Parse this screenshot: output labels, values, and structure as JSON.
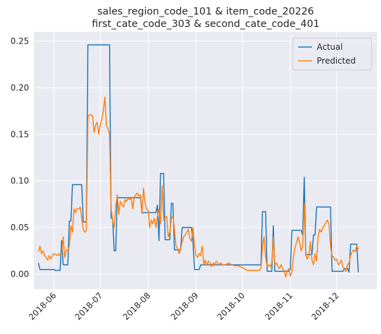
{
  "chart_data": {
    "type": "line",
    "title_line1": "sales_region_code_101 & item_code_20226",
    "title_line2": "first_cate_code_303 & second_cate_code_401",
    "title": "sales_region_code_101 & item_code_20226 first_cate_code_303 & second_cate_code_401",
    "xlabel": "",
    "ylabel": "",
    "x_axis": {
      "type": "date",
      "range": [
        "2018-05-19",
        "2018-12-27"
      ],
      "ticks": [
        "2018-06-01",
        "2018-07-01",
        "2018-08-01",
        "2018-09-01",
        "2018-10-01",
        "2018-11-01",
        "2018-12-01"
      ],
      "tick_labels": [
        "2018-06",
        "2018-07",
        "2018-08",
        "2018-09",
        "2018-10",
        "2018-11",
        "2018-12"
      ]
    },
    "y_axis": {
      "range": [
        -0.016,
        0.26
      ],
      "ticks": [
        0.0,
        0.05,
        0.1,
        0.15,
        0.2,
        0.25
      ],
      "tick_labels": [
        "0.00",
        "0.05",
        "0.10",
        "0.15",
        "0.20",
        "0.25"
      ]
    },
    "grid": true,
    "background": "#eaeaf2",
    "legend_position": "top-right",
    "series": [
      {
        "name": "Actual",
        "color": "#1f77b4",
        "points": [
          [
            "2018-05-22",
            0.012
          ],
          [
            "2018-05-23",
            0.005
          ],
          [
            "2018-06-01",
            0.005
          ],
          [
            "2018-06-02",
            0.004
          ],
          [
            "2018-06-05",
            0.004
          ],
          [
            "2018-06-06",
            0.036
          ],
          [
            "2018-06-07",
            0.01
          ],
          [
            "2018-06-10",
            0.01
          ],
          [
            "2018-06-11",
            0.057
          ],
          [
            "2018-06-12",
            0.057
          ],
          [
            "2018-06-13",
            0.096
          ],
          [
            "2018-06-19",
            0.096
          ],
          [
            "2018-06-20",
            0.056
          ],
          [
            "2018-06-22",
            0.056
          ],
          [
            "2018-06-23",
            0.246
          ],
          [
            "2018-07-07",
            0.246
          ],
          [
            "2018-07-08",
            0.06
          ],
          [
            "2018-07-09",
            0.06
          ],
          [
            "2018-07-10",
            0.025
          ],
          [
            "2018-07-11",
            0.025
          ],
          [
            "2018-07-12",
            0.082
          ],
          [
            "2018-07-27",
            0.082
          ],
          [
            "2018-07-28",
            0.066
          ],
          [
            "2018-08-06",
            0.066
          ],
          [
            "2018-08-07",
            0.074
          ],
          [
            "2018-08-08",
            0.036
          ],
          [
            "2018-08-09",
            0.108
          ],
          [
            "2018-08-11",
            0.108
          ],
          [
            "2018-08-12",
            0.037
          ],
          [
            "2018-08-15",
            0.037
          ],
          [
            "2018-08-16",
            0.076
          ],
          [
            "2018-08-17",
            0.076
          ],
          [
            "2018-08-18",
            0.026
          ],
          [
            "2018-08-22",
            0.026
          ],
          [
            "2018-08-23",
            0.05
          ],
          [
            "2018-08-29",
            0.05
          ],
          [
            "2018-08-30",
            0.035
          ],
          [
            "2018-08-31",
            0.005
          ],
          [
            "2018-09-03",
            0.005
          ],
          [
            "2018-09-04",
            0.01
          ],
          [
            "2018-10-13",
            0.01
          ],
          [
            "2018-10-14",
            0.067
          ],
          [
            "2018-10-16",
            0.067
          ],
          [
            "2018-10-17",
            0.003
          ],
          [
            "2018-10-20",
            0.003
          ],
          [
            "2018-10-21",
            0.052
          ],
          [
            "2018-10-22",
            0.003
          ],
          [
            "2018-10-31",
            0.003
          ],
          [
            "2018-11-01",
            0.005
          ],
          [
            "2018-11-02",
            0.047
          ],
          [
            "2018-11-08",
            0.047
          ],
          [
            "2018-11-09",
            0.042
          ],
          [
            "2018-11-10",
            0.104
          ],
          [
            "2018-11-11",
            0.021
          ],
          [
            "2018-11-15",
            0.021
          ],
          [
            "2018-11-16",
            0.042
          ],
          [
            "2018-11-17",
            0.042
          ],
          [
            "2018-11-18",
            0.072
          ],
          [
            "2018-11-27",
            0.072
          ],
          [
            "2018-11-28",
            0.003
          ],
          [
            "2018-12-05",
            0.003
          ],
          [
            "2018-12-06",
            0.006
          ],
          [
            "2018-12-08",
            0.006
          ],
          [
            "2018-12-09",
            0.002
          ],
          [
            "2018-12-10",
            0.032
          ],
          [
            "2018-12-14",
            0.032
          ],
          [
            "2018-12-15",
            0.002
          ]
        ]
      },
      {
        "name": "Predicted",
        "color": "#ff7f0e",
        "points": [
          [
            "2018-05-22",
            0.024
          ],
          [
            "2018-05-23",
            0.03
          ],
          [
            "2018-05-24",
            0.022
          ],
          [
            "2018-05-25",
            0.025
          ],
          [
            "2018-05-26",
            0.02
          ],
          [
            "2018-05-27",
            0.018
          ],
          [
            "2018-05-28",
            0.015
          ],
          [
            "2018-05-29",
            0.02
          ],
          [
            "2018-05-30",
            0.016
          ],
          [
            "2018-05-31",
            0.02
          ],
          [
            "2018-06-01",
            0.022
          ],
          [
            "2018-06-02",
            0.021
          ],
          [
            "2018-06-03",
            0.02
          ],
          [
            "2018-06-04",
            0.022
          ],
          [
            "2018-06-05",
            0.02
          ],
          [
            "2018-06-06",
            0.022
          ],
          [
            "2018-06-07",
            0.04
          ],
          [
            "2018-06-08",
            0.018
          ],
          [
            "2018-06-09",
            0.026
          ],
          [
            "2018-06-10",
            0.025
          ],
          [
            "2018-06-11",
            0.03
          ],
          [
            "2018-06-12",
            0.052
          ],
          [
            "2018-06-13",
            0.045
          ],
          [
            "2018-06-14",
            0.07
          ],
          [
            "2018-06-15",
            0.066
          ],
          [
            "2018-06-16",
            0.07
          ],
          [
            "2018-06-17",
            0.07
          ],
          [
            "2018-06-18",
            0.072
          ],
          [
            "2018-06-19",
            0.06
          ],
          [
            "2018-06-20",
            0.048
          ],
          [
            "2018-06-21",
            0.045
          ],
          [
            "2018-06-22",
            0.047
          ],
          [
            "2018-06-23",
            0.168
          ],
          [
            "2018-06-24",
            0.171
          ],
          [
            "2018-06-25",
            0.171
          ],
          [
            "2018-06-26",
            0.17
          ],
          [
            "2018-06-27",
            0.152
          ],
          [
            "2018-06-28",
            0.16
          ],
          [
            "2018-06-29",
            0.163
          ],
          [
            "2018-06-30",
            0.15
          ],
          [
            "2018-07-01",
            0.16
          ],
          [
            "2018-07-02",
            0.166
          ],
          [
            "2018-07-03",
            0.175
          ],
          [
            "2018-07-04",
            0.19
          ],
          [
            "2018-07-05",
            0.16
          ],
          [
            "2018-07-06",
            0.156
          ],
          [
            "2018-07-07",
            0.15
          ],
          [
            "2018-07-08",
            0.07
          ],
          [
            "2018-07-09",
            0.058
          ],
          [
            "2018-07-10",
            0.05
          ],
          [
            "2018-07-11",
            0.072
          ],
          [
            "2018-07-12",
            0.085
          ],
          [
            "2018-07-13",
            0.064
          ],
          [
            "2018-07-14",
            0.078
          ],
          [
            "2018-07-15",
            0.075
          ],
          [
            "2018-07-16",
            0.072
          ],
          [
            "2018-07-17",
            0.08
          ],
          [
            "2018-07-18",
            0.078
          ],
          [
            "2018-07-19",
            0.082
          ],
          [
            "2018-07-20",
            0.08
          ],
          [
            "2018-07-21",
            0.082
          ],
          [
            "2018-07-22",
            0.07
          ],
          [
            "2018-07-23",
            0.083
          ],
          [
            "2018-07-24",
            0.085
          ],
          [
            "2018-07-25",
            0.087
          ],
          [
            "2018-07-26",
            0.084
          ],
          [
            "2018-07-27",
            0.085
          ],
          [
            "2018-07-28",
            0.065
          ],
          [
            "2018-07-29",
            0.092
          ],
          [
            "2018-07-30",
            0.076
          ],
          [
            "2018-07-31",
            0.07
          ],
          [
            "2018-08-01",
            0.068
          ],
          [
            "2018-08-02",
            0.05
          ],
          [
            "2018-08-03",
            0.058
          ],
          [
            "2018-08-04",
            0.054
          ],
          [
            "2018-08-05",
            0.06
          ],
          [
            "2018-08-06",
            0.05
          ],
          [
            "2018-08-07",
            0.062
          ],
          [
            "2018-08-08",
            0.07
          ],
          [
            "2018-08-09",
            0.054
          ],
          [
            "2018-08-10",
            0.095
          ],
          [
            "2018-08-11",
            0.058
          ],
          [
            "2018-08-12",
            0.06
          ],
          [
            "2018-08-13",
            0.062
          ],
          [
            "2018-08-14",
            0.04
          ],
          [
            "2018-08-15",
            0.045
          ],
          [
            "2018-08-16",
            0.06
          ],
          [
            "2018-08-17",
            0.062
          ],
          [
            "2018-08-18",
            0.048
          ],
          [
            "2018-08-19",
            0.03
          ],
          [
            "2018-08-20",
            0.028
          ],
          [
            "2018-08-21",
            0.022
          ],
          [
            "2018-08-22",
            0.026
          ],
          [
            "2018-08-23",
            0.035
          ],
          [
            "2018-08-24",
            0.04
          ],
          [
            "2018-08-25",
            0.042
          ],
          [
            "2018-08-26",
            0.045
          ],
          [
            "2018-08-27",
            0.048
          ],
          [
            "2018-08-28",
            0.038
          ],
          [
            "2018-08-29",
            0.035
          ],
          [
            "2018-08-30",
            0.05
          ],
          [
            "2018-08-31",
            0.03
          ],
          [
            "2018-09-01",
            0.02
          ],
          [
            "2018-09-02",
            0.018
          ],
          [
            "2018-09-03",
            0.022
          ],
          [
            "2018-09-04",
            0.02
          ],
          [
            "2018-09-05",
            0.03
          ],
          [
            "2018-09-06",
            0.01
          ],
          [
            "2018-09-07",
            0.015
          ],
          [
            "2018-09-08",
            0.01
          ],
          [
            "2018-09-09",
            0.014
          ],
          [
            "2018-09-10",
            0.012
          ],
          [
            "2018-09-11",
            0.008
          ],
          [
            "2018-09-12",
            0.012
          ],
          [
            "2018-09-13",
            0.01
          ],
          [
            "2018-09-14",
            0.014
          ],
          [
            "2018-09-15",
            0.012
          ],
          [
            "2018-09-16",
            0.01
          ],
          [
            "2018-09-17",
            0.012
          ],
          [
            "2018-09-18",
            0.01
          ],
          [
            "2018-09-20",
            0.01
          ],
          [
            "2018-09-22",
            0.012
          ],
          [
            "2018-09-24",
            0.01
          ],
          [
            "2018-09-26",
            0.009
          ],
          [
            "2018-09-28",
            0.009
          ],
          [
            "2018-09-30",
            0.008
          ],
          [
            "2018-10-02",
            0.006
          ],
          [
            "2018-10-04",
            0.004
          ],
          [
            "2018-10-06",
            0.004
          ],
          [
            "2018-10-08",
            0.004
          ],
          [
            "2018-10-10",
            0.004
          ],
          [
            "2018-10-12",
            0.004
          ],
          [
            "2018-10-13",
            0.006
          ],
          [
            "2018-10-14",
            0.03
          ],
          [
            "2018-10-15",
            0.04
          ],
          [
            "2018-10-16",
            0.018
          ],
          [
            "2018-10-17",
            0.008
          ],
          [
            "2018-10-18",
            0.01
          ],
          [
            "2018-10-19",
            0.008
          ],
          [
            "2018-10-20",
            0.012
          ],
          [
            "2018-10-21",
            0.04
          ],
          [
            "2018-10-22",
            0.01
          ],
          [
            "2018-10-23",
            0.012
          ],
          [
            "2018-10-24",
            0.008
          ],
          [
            "2018-10-25",
            0.006
          ],
          [
            "2018-10-26",
            0.01
          ],
          [
            "2018-10-27",
            0.006
          ],
          [
            "2018-10-28",
            0.004
          ],
          [
            "2018-10-29",
            -0.003
          ],
          [
            "2018-10-30",
            0.003
          ],
          [
            "2018-10-31",
            0.006
          ],
          [
            "2018-11-01",
            -0.002
          ],
          [
            "2018-11-02",
            0.002
          ],
          [
            "2018-11-03",
            0.018
          ],
          [
            "2018-11-04",
            0.028
          ],
          [
            "2018-11-05",
            0.034
          ],
          [
            "2018-11-06",
            0.04
          ],
          [
            "2018-11-07",
            0.034
          ],
          [
            "2018-11-08",
            0.025
          ],
          [
            "2018-11-09",
            0.03
          ],
          [
            "2018-11-10",
            0.076
          ],
          [
            "2018-11-11",
            0.02
          ],
          [
            "2018-11-12",
            0.016
          ],
          [
            "2018-11-13",
            0.02
          ],
          [
            "2018-11-14",
            0.035
          ],
          [
            "2018-11-15",
            0.015
          ],
          [
            "2018-11-16",
            0.01
          ],
          [
            "2018-11-17",
            0.022
          ],
          [
            "2018-11-18",
            0.014
          ],
          [
            "2018-11-19",
            0.04
          ],
          [
            "2018-11-20",
            0.048
          ],
          [
            "2018-11-21",
            0.045
          ],
          [
            "2018-11-22",
            0.05
          ],
          [
            "2018-11-23",
            0.052
          ],
          [
            "2018-11-24",
            0.055
          ],
          [
            "2018-11-25",
            0.058
          ],
          [
            "2018-11-26",
            0.054
          ],
          [
            "2018-11-27",
            0.03
          ],
          [
            "2018-11-28",
            0.02
          ],
          [
            "2018-11-29",
            0.018
          ],
          [
            "2018-11-30",
            0.015
          ],
          [
            "2018-12-01",
            0.016
          ],
          [
            "2018-12-02",
            0.01
          ],
          [
            "2018-12-03",
            0.012
          ],
          [
            "2018-12-04",
            0.015
          ],
          [
            "2018-12-05",
            0.008
          ],
          [
            "2018-12-06",
            0.005
          ],
          [
            "2018-12-07",
            0.003
          ],
          [
            "2018-12-08",
            0.01
          ],
          [
            "2018-12-09",
            0.012
          ],
          [
            "2018-12-10",
            0.02
          ],
          [
            "2018-12-11",
            0.024
          ],
          [
            "2018-12-12",
            0.026
          ],
          [
            "2018-12-13",
            0.024
          ],
          [
            "2018-12-14",
            0.03
          ],
          [
            "2018-12-15",
            0.027
          ]
        ]
      }
    ]
  }
}
